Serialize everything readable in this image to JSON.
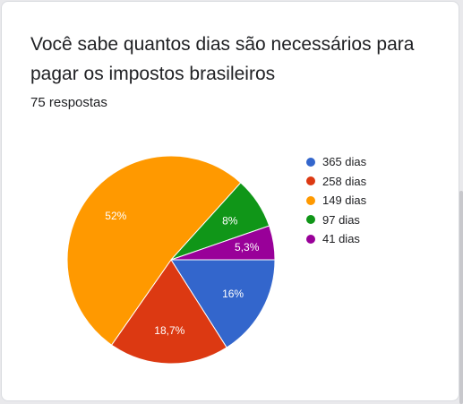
{
  "card": {
    "title": "Você sabe quantos dias são necessários para pagar os impostos brasileiros",
    "response_count": "75 respostas"
  },
  "chart_data": {
    "type": "pie",
    "title": "Você sabe quantos dias são necessários para pagar os impostos brasileiros",
    "categories": [
      "365 dias",
      "258 dias",
      "149 dias",
      "97 dias",
      "41 dias"
    ],
    "values": [
      16,
      18.7,
      52,
      8,
      5.3
    ],
    "labels": [
      "16%",
      "18,7%",
      "52%",
      "8%",
      "5,3%"
    ],
    "colors": [
      "#3366cc",
      "#dc3912",
      "#ff9900",
      "#109618",
      "#990099"
    ],
    "legend_placement": "right"
  }
}
